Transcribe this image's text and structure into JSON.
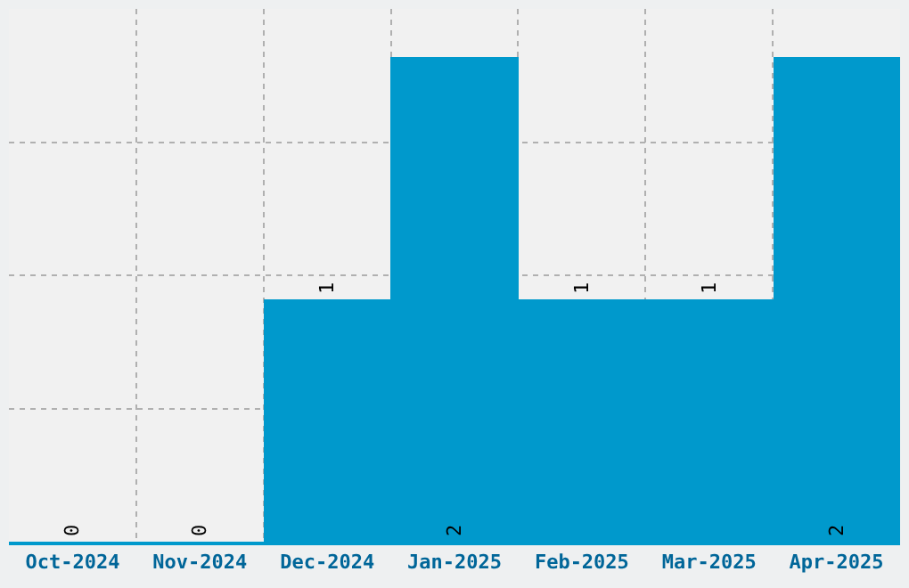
{
  "chart_data": {
    "type": "bar",
    "categories": [
      "Oct-2024",
      "Nov-2024",
      "Dec-2024",
      "Jan-2025",
      "Feb-2025",
      "Mar-2025",
      "Apr-2025"
    ],
    "values": [
      0,
      0,
      1,
      2,
      1,
      1,
      2
    ],
    "color": "#0099cc",
    "data_labels": true,
    "ylim": [
      0,
      2.2
    ],
    "yticks": [
      {
        "value": 0.55,
        "label": null
      },
      {
        "value": 1.1,
        "label": null
      },
      {
        "value": 1.65,
        "label": null
      }
    ],
    "tick_labels": "x",
    "grid": true
  }
}
